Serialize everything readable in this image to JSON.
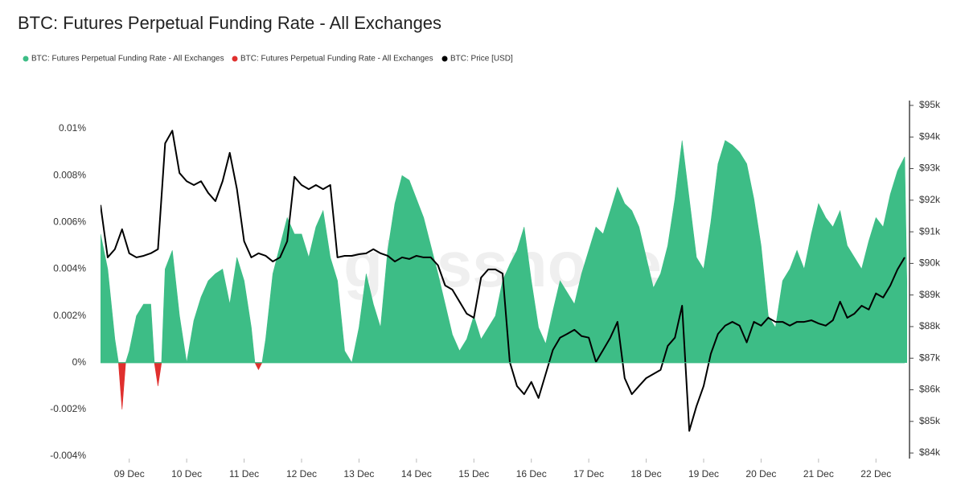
{
  "chart_data": {
    "type": "area",
    "title": "BTC: Futures Perpetual Funding Rate - All Exchanges",
    "watermark": "glassnode",
    "x": [
      8.5,
      8.625,
      8.75,
      8.875,
      9,
      9.125,
      9.25,
      9.375,
      9.5,
      9.625,
      9.75,
      9.875,
      10,
      10.125,
      10.25,
      10.375,
      10.5,
      10.625,
      10.75,
      10.875,
      11,
      11.125,
      11.25,
      11.375,
      11.5,
      11.625,
      11.75,
      11.875,
      12,
      12.125,
      12.25,
      12.375,
      12.5,
      12.625,
      12.75,
      12.875,
      13,
      13.125,
      13.25,
      13.375,
      13.5,
      13.625,
      13.75,
      13.875,
      14,
      14.125,
      14.25,
      14.375,
      14.5,
      14.625,
      14.75,
      14.875,
      15,
      15.125,
      15.25,
      15.375,
      15.5,
      15.625,
      15.75,
      15.875,
      16,
      16.125,
      16.25,
      16.375,
      16.5,
      16.625,
      16.75,
      16.875,
      17,
      17.125,
      17.25,
      17.375,
      17.5,
      17.625,
      17.75,
      17.875,
      18,
      18.125,
      18.25,
      18.375,
      18.5,
      18.625,
      18.75,
      18.875,
      19,
      19.125,
      19.25,
      19.375,
      19.5,
      19.625,
      19.75,
      19.875,
      20,
      20.125,
      20.25,
      20.375,
      20.5,
      20.625,
      20.75,
      20.875,
      21,
      21.125,
      21.25,
      21.375,
      21.5,
      21.625,
      21.75,
      21.875,
      22,
      22.125,
      22.25,
      22.375,
      22.5
    ],
    "xlim": [
      8.5,
      22.5
    ],
    "xticks": [
      {
        "value": 9,
        "label": "09 Dec"
      },
      {
        "value": 10,
        "label": "10 Dec"
      },
      {
        "value": 11,
        "label": "11 Dec"
      },
      {
        "value": 12,
        "label": "12 Dec"
      },
      {
        "value": 13,
        "label": "13 Dec"
      },
      {
        "value": 14,
        "label": "14 Dec"
      },
      {
        "value": 15,
        "label": "15 Dec"
      },
      {
        "value": 16,
        "label": "16 Dec"
      },
      {
        "value": 17,
        "label": "17 Dec"
      },
      {
        "value": 18,
        "label": "18 Dec"
      },
      {
        "value": 19,
        "label": "19 Dec"
      },
      {
        "value": 20,
        "label": "20 Dec"
      },
      {
        "value": 21,
        "label": "21 Dec"
      },
      {
        "value": 22,
        "label": "22 Dec"
      }
    ],
    "ylim": [
      -0.004,
      0.011
    ],
    "yticks": [
      {
        "value": -0.004,
        "label": "-0.004%"
      },
      {
        "value": -0.002,
        "label": "-0.002%"
      },
      {
        "value": 0,
        "label": "0%"
      },
      {
        "value": 0.002,
        "label": "0.002%"
      },
      {
        "value": 0.004,
        "label": "0.004%"
      },
      {
        "value": 0.006,
        "label": "0.006%"
      },
      {
        "value": 0.008,
        "label": "0.008%"
      },
      {
        "value": 0.01,
        "label": "0.01%"
      }
    ],
    "y2lim": [
      83900,
      95000
    ],
    "y2ticks": [
      {
        "value": 84000,
        "label": "$84k"
      },
      {
        "value": 85000,
        "label": "$85k"
      },
      {
        "value": 86000,
        "label": "$86k"
      },
      {
        "value": 87000,
        "label": "$87k"
      },
      {
        "value": 88000,
        "label": "$88k"
      },
      {
        "value": 89000,
        "label": "$89k"
      },
      {
        "value": 90000,
        "label": "$90k"
      },
      {
        "value": 91000,
        "label": "$91k"
      },
      {
        "value": 92000,
        "label": "$92k"
      },
      {
        "value": 93000,
        "label": "$93k"
      },
      {
        "value": 94000,
        "label": "$94k"
      },
      {
        "value": 95000,
        "label": "$95k"
      }
    ],
    "grid": false,
    "series": [
      {
        "name": "BTC: Futures Perpetual Funding Rate - All Exchanges",
        "type": "area",
        "color": "#3dbd86",
        "values": [
          0.0055,
          0.004,
          0.001,
          null,
          0.0005,
          0.002,
          0.0025,
          0.0025,
          null,
          0.004,
          0.0048,
          0.002,
          0,
          0.0018,
          0.0028,
          0.0035,
          0.0038,
          0.004,
          0.0025,
          0.0045,
          0.0035,
          0.0015,
          null,
          0.001,
          0.0038,
          0.005,
          0.0062,
          0.0055,
          0.0055,
          0.0045,
          0.0058,
          0.0065,
          0.0045,
          0.0035,
          0.0005,
          0,
          0.0015,
          0.0038,
          0.0025,
          0.0015,
          0.0048,
          0.0068,
          0.008,
          0.0078,
          0.007,
          0.0062,
          0.005,
          0.0038,
          0.0025,
          0.0012,
          0.0005,
          0.001,
          0.002,
          0.001,
          0.0015,
          0.002,
          0.0035,
          0.0042,
          0.0048,
          0.0058,
          0.0035,
          0.0015,
          0.0008,
          0.0022,
          0.0035,
          0.003,
          0.0025,
          0.0038,
          0.0048,
          0.0058,
          0.0055,
          0.0065,
          0.0075,
          0.0068,
          0.0065,
          0.0058,
          0.0045,
          0.0032,
          0.0038,
          0.005,
          0.007,
          0.0095,
          0.007,
          0.0045,
          0.004,
          0.006,
          0.0085,
          0.0095,
          0.0093,
          0.009,
          0.0085,
          0.007,
          0.005,
          0.002,
          0.0015,
          0.0035,
          0.004,
          0.0048,
          0.004,
          0.0055,
          0.0068,
          0.0062,
          0.0058,
          0.0065,
          0.005,
          0.0045,
          0.004,
          0.0052,
          0.0062,
          0.0058,
          0.0072,
          0.0082,
          0.0088
        ]
      },
      {
        "name": "BTC: Futures Perpetual Funding Rate - All Exchanges",
        "type": "area",
        "color": "#e0302e",
        "values": [
          null,
          null,
          null,
          -0.002,
          null,
          null,
          null,
          null,
          -0.001,
          null,
          null,
          null,
          null,
          null,
          null,
          null,
          null,
          null,
          null,
          null,
          null,
          null,
          -0.0003,
          null,
          null,
          null,
          null,
          null,
          null,
          null,
          null,
          null,
          null,
          null,
          null,
          null,
          null,
          null,
          null,
          null,
          null,
          null,
          null,
          null,
          null,
          null,
          null,
          null,
          null,
          null,
          null,
          null,
          null,
          null,
          null,
          null,
          null,
          null,
          null,
          null,
          null,
          null,
          null,
          null,
          null,
          null,
          null,
          null,
          null,
          null,
          null,
          null,
          null,
          null,
          null,
          null,
          null,
          null,
          null,
          null,
          null,
          null,
          null,
          null,
          null,
          null,
          null,
          null,
          null,
          null,
          null,
          null,
          null,
          null,
          null,
          null,
          null,
          null,
          null,
          null,
          null,
          null,
          null,
          null,
          null,
          null,
          null,
          null,
          null,
          null,
          null,
          null,
          null
        ]
      },
      {
        "name": "BTC: Price [USD]",
        "type": "line",
        "axis": "y2",
        "color": "#000000",
        "values": [
          91850,
          90190,
          90450,
          91080,
          90320,
          90190,
          90240,
          90320,
          90450,
          93800,
          94200,
          92860,
          92600,
          92480,
          92600,
          92230,
          91970,
          92600,
          93500,
          92350,
          90700,
          90190,
          90320,
          90240,
          90060,
          90190,
          90700,
          92740,
          92480,
          92350,
          92480,
          92350,
          92480,
          90190,
          90240,
          90240,
          90290,
          90320,
          90450,
          90320,
          90240,
          90060,
          90190,
          90140,
          90240,
          90190,
          90190,
          89940,
          89300,
          89170,
          88790,
          88410,
          88280,
          89550,
          89810,
          89810,
          89680,
          86880,
          86120,
          85860,
          86250,
          85740,
          86500,
          87260,
          87650,
          87770,
          87900,
          87700,
          87650,
          86880,
          87260,
          87650,
          88150,
          86370,
          85860,
          86120,
          86370,
          86500,
          86630,
          87390,
          87650,
          88660,
          84700,
          85480,
          86120,
          87140,
          87770,
          88030,
          88150,
          88030,
          87500,
          88150,
          88030,
          88280,
          88150,
          88150,
          88030,
          88150,
          88150,
          88200,
          88100,
          88030,
          88200,
          88790,
          88280,
          88410,
          88660,
          88540,
          89050,
          88920,
          89300,
          89810,
          90190
        ]
      }
    ]
  }
}
